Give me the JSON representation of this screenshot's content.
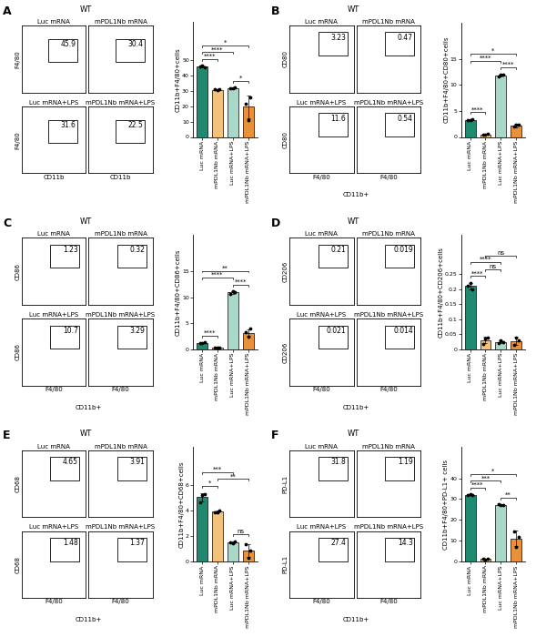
{
  "chart_data": [
    {
      "type": "bar",
      "ylabel": "CD11b+F4/80+cells",
      "categories": [
        "Luc mRNA",
        "mPDL1Nb mRNA",
        "Luc mRNA+LPS",
        "mPDL1Nb mRNA+LPS"
      ],
      "values": [
        46,
        30.8,
        32,
        19.7
      ],
      "errors": [
        0.5,
        0.3,
        0.3,
        7.6
      ],
      "points": [
        [
          46,
          46.5,
          45.5
        ],
        [
          31,
          30.5,
          31
        ],
        [
          32,
          31.7,
          32.3
        ],
        [
          22,
          11,
          26
        ]
      ],
      "colors": [
        "#1f8a70",
        "#f4c27a",
        "#a8d8c8",
        "#e8913a"
      ],
      "ylim": [
        0,
        75
      ],
      "yticks": [
        0,
        10,
        20,
        30,
        40,
        50
      ],
      "annotations": [
        {
          "from": 0,
          "to": 1,
          "text": "****"
        },
        {
          "from": 2,
          "to": 3,
          "text": "*"
        },
        {
          "from": 0,
          "to": 2,
          "text": "****"
        },
        {
          "from": 0,
          "to": 3,
          "text": "*"
        }
      ]
    },
    {
      "type": "bar",
      "ylabel": "CD11b+F4/80+CD80+cells",
      "categories": [
        "Luc mRNA",
        "mPDL1Nb mRNA",
        "Luc mRNA+LPS",
        "mPDL1Nb mRNA+LPS"
      ],
      "values": [
        3.3,
        0.5,
        11.8,
        2.2
      ],
      "errors": [
        0.1,
        0.05,
        0.2,
        0.3
      ],
      "points": [
        [
          3.2,
          3.3,
          3.4
        ],
        [
          0.5,
          0.45,
          0.6
        ],
        [
          11.6,
          11.9,
          12.0
        ],
        [
          2.0,
          2.4,
          2.3
        ]
      ],
      "colors": [
        "#1f8a70",
        "#f4c27a",
        "#a8d8c8",
        "#e8913a"
      ],
      "ylim": [
        0,
        22
      ],
      "yticks": [
        0,
        5,
        10,
        15
      ],
      "annotations": [
        {
          "from": 0,
          "to": 1,
          "text": "****"
        },
        {
          "from": 2,
          "to": 3,
          "text": "****"
        },
        {
          "from": 0,
          "to": 2,
          "text": "****"
        },
        {
          "from": 0,
          "to": 3,
          "text": "*"
        }
      ]
    },
    {
      "type": "bar",
      "ylabel": "CD11b+F4/80+CD86+cells",
      "categories": [
        "Luc mRNA",
        "mPDL1Nb mRNA",
        "Luc mRNA+LPS",
        "mPDL1Nb mRNA+LPS"
      ],
      "values": [
        1.25,
        0.32,
        10.9,
        3.2
      ],
      "errors": [
        0.05,
        0.03,
        0.2,
        0.6
      ],
      "points": [
        [
          1.2,
          1.25,
          1.3
        ],
        [
          0.32,
          0.3,
          0.35
        ],
        [
          10.7,
          11.1,
          11.0
        ],
        [
          3.3,
          2.5,
          3.9
        ]
      ],
      "colors": [
        "#1f8a70",
        "#f4c27a",
        "#a8d8c8",
        "#e8913a"
      ],
      "ylim": [
        0,
        22
      ],
      "yticks": [
        0,
        5,
        10,
        15
      ],
      "annotations": [
        {
          "from": 0,
          "to": 1,
          "text": "****"
        },
        {
          "from": 2,
          "to": 3,
          "text": "****"
        },
        {
          "from": 0,
          "to": 2,
          "text": "****"
        },
        {
          "from": 0,
          "to": 3,
          "text": "**"
        }
      ]
    },
    {
      "type": "bar",
      "ylabel": "CD11b+F4/80+CD206+cells",
      "categories": [
        "Luc mRNA",
        "mPDL1Nb mRNA",
        "Luc mRNA+LPS",
        "mPDL1Nb mRNA+LPS"
      ],
      "values": [
        0.21,
        0.031,
        0.025,
        0.028
      ],
      "errors": [
        0.01,
        0.01,
        0.005,
        0.013
      ],
      "points": [
        [
          0.21,
          0.22,
          0.2
        ],
        [
          0.019,
          0.035,
          0.04
        ],
        [
          0.021,
          0.03,
          0.025
        ],
        [
          0.014,
          0.04,
          0.03
        ]
      ],
      "colors": [
        "#1f8a70",
        "#f4c27a",
        "#a8d8c8",
        "#e8913a"
      ],
      "ylim": [
        0,
        0.38
      ],
      "yticks": [
        0,
        0.05,
        0.1,
        0.15,
        0.2,
        0.25
      ],
      "annotations": [
        {
          "from": 0,
          "to": 1,
          "text": "****"
        },
        {
          "from": 1,
          "to": 2,
          "text": "ns"
        },
        {
          "from": 0,
          "to": 2,
          "text": "****"
        },
        {
          "from": 1,
          "to": 3,
          "text": "ns"
        }
      ]
    },
    {
      "type": "bar",
      "ylabel": "CD11b+F4/80+CD68+cells",
      "categories": [
        "Luc mRNA",
        "mPDL1Nb mRNA",
        "Luc mRNA+LPS",
        "mPDL1Nb mRNA+LPS"
      ],
      "values": [
        5.05,
        3.92,
        1.52,
        0.87
      ],
      "errors": [
        0.35,
        0.08,
        0.08,
        0.5
      ],
      "points": [
        [
          4.65,
          5.2,
          5.3
        ],
        [
          3.9,
          3.85,
          4.0
        ],
        [
          1.5,
          1.45,
          1.6
        ],
        [
          1.4,
          0.3,
          0.9
        ]
      ],
      "colors": [
        "#1f8a70",
        "#f4c27a",
        "#a8d8c8",
        "#e8913a"
      ],
      "ylim": [
        0,
        9
      ],
      "yticks": [
        0,
        2,
        4,
        6
      ],
      "annotations": [
        {
          "from": 0,
          "to": 1,
          "text": "*"
        },
        {
          "from": 2,
          "to": 3,
          "text": "ns"
        },
        {
          "from": 1,
          "to": 3,
          "text": "**"
        },
        {
          "from": 0,
          "to": 2,
          "text": "***"
        }
      ]
    },
    {
      "type": "bar",
      "ylabel": "CD11b+F4/80+PD-L1+ cells",
      "categories": [
        "Luc mRNA",
        "mPDL1Nb mRNA",
        "Luc mRNA+LPS",
        "mPDL1Nb mRNA+LPS"
      ],
      "values": [
        32,
        1.2,
        27.2,
        11.1
      ],
      "errors": [
        0.2,
        0.1,
        0.2,
        3.7
      ],
      "points": [
        [
          31.8,
          32.2,
          31.9
        ],
        [
          1.2,
          1.1,
          1.3
        ],
        [
          27.4,
          27.0,
          27.3
        ],
        [
          14.3,
          7,
          12
        ]
      ],
      "colors": [
        "#1f8a70",
        "#f4c27a",
        "#a8d8c8",
        "#e8913a"
      ],
      "ylim": [
        0,
        55
      ],
      "yticks": [
        0,
        10,
        20,
        30,
        40
      ],
      "annotations": [
        {
          "from": 0,
          "to": 1,
          "text": "****"
        },
        {
          "from": 2,
          "to": 3,
          "text": "**"
        },
        {
          "from": 0,
          "to": 2,
          "text": "***"
        },
        {
          "from": 0,
          "to": 3,
          "text": "*"
        }
      ]
    }
  ],
  "flow_panels": [
    {
      "panel": "A",
      "title": "WT",
      "xlabel": "CD11b",
      "ylabel": "F4/80",
      "plots": [
        {
          "label": "Luc mRNA",
          "gate": 45.9
        },
        {
          "label": "mPDL1Nb mRNA",
          "gate": 30.4
        },
        {
          "label": "Luc mRNA+LPS",
          "gate": 31.6
        },
        {
          "label": "mPDL1Nb mRNA+LPS",
          "gate": 22.5
        }
      ]
    },
    {
      "panel": "B",
      "title": "WT",
      "xlabel": "F4/80",
      "gate_note": "CD11b+",
      "ylabel": "CD80",
      "plots": [
        {
          "label": "Luc mRNA",
          "gate": 3.23
        },
        {
          "label": "mPDL1Nb mRNA",
          "gate": 0.47
        },
        {
          "label": "Luc mRNA+LPS",
          "gate": 11.6
        },
        {
          "label": "mPDL1Nb mRNA+LPS",
          "gate": 0.54
        }
      ]
    },
    {
      "panel": "C",
      "title": "WT",
      "xlabel": "F4/80",
      "gate_note": "CD11b+",
      "ylabel": "CD86",
      "plots": [
        {
          "label": "Luc mRNA",
          "gate": 1.23
        },
        {
          "label": "mPDL1Nb mRNA",
          "gate": 0.32
        },
        {
          "label": "Luc mRNA+LPS",
          "gate": 10.7
        },
        {
          "label": "mPDL1Nb mRNA+LPS",
          "gate": 3.29
        }
      ]
    },
    {
      "panel": "D",
      "title": "WT",
      "xlabel": "F4/80",
      "gate_note": "CD11b+",
      "ylabel": "CD206",
      "plots": [
        {
          "label": "Luc mRNA",
          "gate": 0.21
        },
        {
          "label": "mPDL1Nb mRNA",
          "gate": 0.019
        },
        {
          "label": "Luc mRNA+LPS",
          "gate": 0.021
        },
        {
          "label": "mPDL1Nb mRNA+LPS",
          "gate": 0.014
        }
      ]
    },
    {
      "panel": "E",
      "title": "WT",
      "xlabel": "F4/80",
      "gate_note": "CD11b+",
      "ylabel": "CD68",
      "plots": [
        {
          "label": "Luc mRNA",
          "gate": 4.65
        },
        {
          "label": "mPDL1Nb mRNA",
          "gate": 3.91
        },
        {
          "label": "Luc mRNA+LPS",
          "gate": 1.48
        },
        {
          "label": "mPDL1Nb mRNA+LPS",
          "gate": 1.37
        }
      ]
    },
    {
      "panel": "F",
      "title": "WT",
      "xlabel": "F4/80",
      "gate_note": "CD11b+",
      "ylabel": "PD-L1",
      "plots": [
        {
          "label": "Luc mRNA",
          "gate": 31.8
        },
        {
          "label": "mPDL1Nb mRNA",
          "gate": 1.19
        },
        {
          "label": "Luc mRNA+LPS",
          "gate": 27.4
        },
        {
          "label": "mPDL1Nb mRNA+LPS",
          "gate": 14.3
        }
      ]
    }
  ]
}
